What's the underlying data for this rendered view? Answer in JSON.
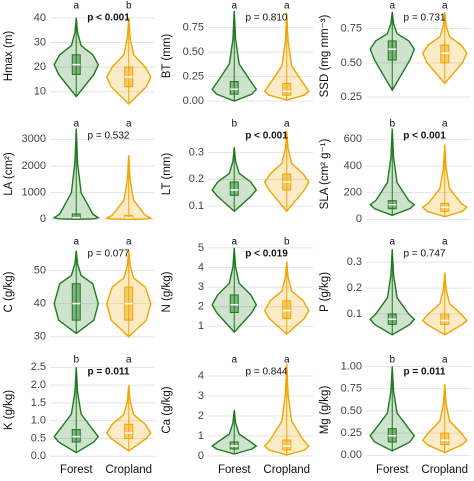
{
  "groups": [
    {
      "name": "Forest",
      "color": "#1f7a1f"
    },
    {
      "name": "Cropland",
      "color": "#f2a400"
    }
  ],
  "chart_data": [
    {
      "type": "violin",
      "ylabel": "Hmax (m)",
      "letters": [
        "a",
        "b"
      ],
      "p_label": "p < 0.001",
      "p_bold": true,
      "ylim": [
        5,
        44
      ],
      "yticks": [
        10,
        20,
        30,
        40
      ],
      "series": [
        {
          "min": 8,
          "q1": 17,
          "median": 21,
          "q3": 25,
          "max": 40
        },
        {
          "min": 5,
          "q1": 12,
          "median": 16,
          "q3": 20,
          "max": 40
        }
      ]
    },
    {
      "type": "violin",
      "ylabel": "BT (mm)",
      "letters": [
        "a",
        "a"
      ],
      "p_label": "p = 0.810",
      "p_bold": false,
      "ylim": [
        -0.03,
        0.95
      ],
      "yticks": [
        {
          "value": 0,
          "label": "0.00"
        },
        0.25,
        {
          "value": 0.5,
          "label": "0.50"
        },
        0.75
      ],
      "series": [
        {
          "min": 0.0,
          "q1": 0.07,
          "median": 0.12,
          "q3": 0.2,
          "max": 0.92
        },
        {
          "min": 0.01,
          "q1": 0.06,
          "median": 0.1,
          "q3": 0.18,
          "max": 0.9
        }
      ]
    },
    {
      "type": "violin",
      "ylabel": "SSD (mg mm⁻³)",
      "letters": [
        "a",
        "a"
      ],
      "p_label": "p = 0.731",
      "p_bold": false,
      "ylim": [
        0.2,
        0.9
      ],
      "yticks": [
        0.25,
        {
          "value": 0.5,
          "label": "0.50"
        },
        0.75
      ],
      "series": [
        {
          "min": 0.3,
          "q1": 0.52,
          "median": 0.6,
          "q3": 0.66,
          "max": 0.87
        },
        {
          "min": 0.35,
          "q1": 0.5,
          "median": 0.57,
          "q3": 0.63,
          "max": 0.87
        }
      ]
    },
    {
      "type": "violin",
      "ylabel": "LA (cm²)",
      "letters": [
        "a",
        "a"
      ],
      "p_label": "p = 0.532",
      "p_bold": false,
      "ylim": [
        -100,
        3500
      ],
      "yticks": [
        0,
        1000,
        2000,
        3000
      ],
      "series": [
        {
          "min": 0,
          "q1": 20,
          "median": 60,
          "q3": 200,
          "max": 3400
        },
        {
          "min": 0,
          "q1": 15,
          "median": 50,
          "q3": 150,
          "max": 2400
        }
      ]
    },
    {
      "type": "violin",
      "ylabel": "LT (mm)",
      "letters": [
        "b",
        "a"
      ],
      "p_label": "p < 0.001",
      "p_bold": true,
      "ylim": [
        0.04,
        0.4
      ],
      "yticks": [
        0.1,
        0.2,
        0.3
      ],
      "series": [
        {
          "min": 0.08,
          "q1": 0.14,
          "median": 0.16,
          "q3": 0.19,
          "max": 0.32
        },
        {
          "min": 0.08,
          "q1": 0.16,
          "median": 0.19,
          "q3": 0.22,
          "max": 0.38
        }
      ]
    },
    {
      "type": "violin",
      "ylabel": "SLA (cm² g⁻¹)",
      "letters": [
        "b",
        "a"
      ],
      "p_label": "p < 0.001",
      "p_bold": true,
      "ylim": [
        -20,
        700
      ],
      "yticks": [
        0,
        200,
        400,
        600
      ],
      "series": [
        {
          "min": 30,
          "q1": 80,
          "median": 110,
          "q3": 140,
          "max": 680
        },
        {
          "min": 20,
          "q1": 60,
          "median": 90,
          "q3": 120,
          "max": 560
        }
      ]
    },
    {
      "type": "violin",
      "ylabel": "C (g/kg)",
      "letters": [
        "a",
        "a"
      ],
      "p_label": "p = 0.077",
      "p_bold": false,
      "ylim": [
        29,
        58
      ],
      "yticks": [
        30,
        40,
        50
      ],
      "series": [
        {
          "min": 31,
          "q1": 35,
          "median": 40,
          "q3": 46,
          "max": 56
        },
        {
          "min": 30,
          "q1": 35,
          "median": 40,
          "q3": 45,
          "max": 56
        }
      ]
    },
    {
      "type": "violin",
      "ylabel": "N (g/kg)",
      "letters": [
        "a",
        "b"
      ],
      "p_label": "p < 0.019",
      "p_bold": true,
      "ylim": [
        0.3,
        5.2
      ],
      "yticks": [
        1,
        2,
        3,
        4,
        5
      ],
      "series": [
        {
          "min": 0.7,
          "q1": 1.7,
          "median": 2.1,
          "q3": 2.6,
          "max": 5.0
        },
        {
          "min": 0.6,
          "q1": 1.4,
          "median": 1.8,
          "q3": 2.3,
          "max": 4.3
        }
      ]
    },
    {
      "type": "violin",
      "ylabel": "P (g/kg)",
      "letters": [
        "a",
        "a"
      ],
      "p_label": "p = 0.747",
      "p_bold": false,
      "ylim": [
        0.0,
        0.37
      ],
      "yticks": [
        0.1,
        0.2,
        0.3
      ],
      "series": [
        {
          "min": 0.02,
          "q1": 0.06,
          "median": 0.08,
          "q3": 0.1,
          "max": 0.35
        },
        {
          "min": 0.02,
          "q1": 0.06,
          "median": 0.075,
          "q3": 0.1,
          "max": 0.26
        }
      ]
    },
    {
      "type": "violin",
      "ylabel": "K (g/kg)",
      "letters": [
        "b",
        "a"
      ],
      "p_label": "p = 0.011",
      "p_bold": true,
      "ylim": [
        -0.05,
        2.65
      ],
      "yticks": [
        {
          "value": 0,
          "label": "0.0"
        },
        0.5,
        {
          "value": 1,
          "label": "1.0"
        },
        1.5,
        {
          "value": 2,
          "label": "2.0"
        },
        2.5
      ],
      "series": [
        {
          "min": 0.1,
          "q1": 0.4,
          "median": 0.55,
          "q3": 0.75,
          "max": 2.5
        },
        {
          "min": 0.15,
          "q1": 0.5,
          "median": 0.65,
          "q3": 0.9,
          "max": 2.0
        }
      ]
    },
    {
      "type": "violin",
      "ylabel": "Ca (g/kg)",
      "letters": [
        "a",
        "a"
      ],
      "p_label": "p = 0.844",
      "p_bold": false,
      "ylim": [
        -0.1,
        4.7
      ],
      "yticks": [
        0,
        1,
        2,
        3,
        4
      ],
      "series": [
        {
          "min": 0.1,
          "q1": 0.35,
          "median": 0.5,
          "q3": 0.7,
          "max": 2.3
        },
        {
          "min": 0.05,
          "q1": 0.3,
          "median": 0.5,
          "q3": 0.8,
          "max": 4.6
        }
      ]
    },
    {
      "type": "violin",
      "ylabel": "Mg (g/kg)",
      "letters": [
        "b",
        "a"
      ],
      "p_label": "p = 0.011",
      "p_bold": true,
      "ylim": [
        -0.03,
        1.05
      ],
      "yticks": [
        {
          "value": 0,
          "label": "0.00"
        },
        0.25,
        {
          "value": 0.5,
          "label": "0.50"
        },
        0.75,
        {
          "value": 1,
          "label": "1.00"
        }
      ],
      "series": [
        {
          "min": 0.05,
          "q1": 0.15,
          "median": 0.22,
          "q3": 0.3,
          "max": 1.0
        },
        {
          "min": 0.03,
          "q1": 0.12,
          "median": 0.17,
          "q3": 0.25,
          "max": 0.8
        }
      ]
    }
  ]
}
